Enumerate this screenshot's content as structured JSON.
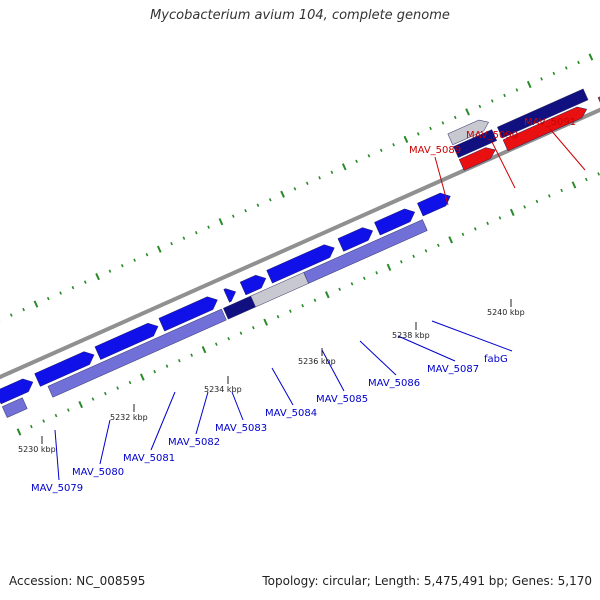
{
  "header": {
    "title": "Mycobacterium avium 104, complete genome"
  },
  "footer": {
    "accession": "Accession: NC_008595",
    "summary": "Topology: circular; Length: 5,475,491 bp; Genes: 5,170"
  },
  "colors": {
    "forward_gene": "#1010e8",
    "forward_gene_dark": "#101080",
    "reverse_gene": "#e81010",
    "reverse_gene_light": "#7070d8",
    "backbone": "#909090",
    "tick_green": "#2a8a2a",
    "label_blue": "#0000cc",
    "label_red": "#cc0000"
  },
  "kbp_labels": [
    "5230 kbp",
    "5232 kbp",
    "5234 kbp",
    "5236 kbp",
    "5238 kbp",
    "5240 kbp"
  ],
  "gene_labels_blue": [
    "MAV_5079",
    "MAV_5080",
    "MAV_5081",
    "MAV_5082",
    "MAV_5083",
    "MAV_5084",
    "MAV_5085",
    "MAV_5086",
    "MAV_5087",
    "fabG"
  ],
  "gene_labels_red": [
    "MAV_5089",
    "MAV_5090",
    "MAV_5091"
  ]
}
